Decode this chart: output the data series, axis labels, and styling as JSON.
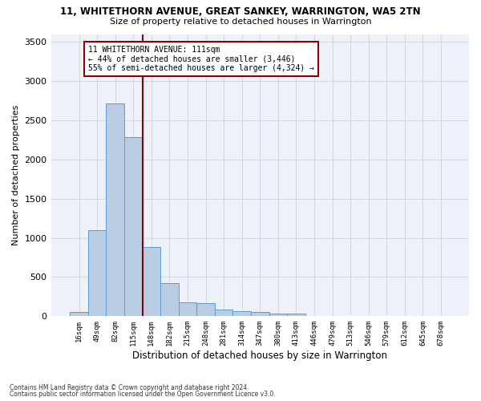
{
  "title_line1": "11, WHITETHORN AVENUE, GREAT SANKEY, WARRINGTON, WA5 2TN",
  "title_line2": "Size of property relative to detached houses in Warrington",
  "xlabel": "Distribution of detached houses by size in Warrington",
  "ylabel": "Number of detached properties",
  "footnote1": "Contains HM Land Registry data © Crown copyright and database right 2024.",
  "footnote2": "Contains public sector information licensed under the Open Government Licence v3.0.",
  "annotation_line1": "11 WHITETHORN AVENUE: 111sqm",
  "annotation_line2": "← 44% of detached houses are smaller (3,446)",
  "annotation_line3": "55% of semi-detached houses are larger (4,324) →",
  "bar_color": "#b8cce4",
  "bar_edge_color": "#5b9bd5",
  "grid_color": "#d0d8e8",
  "background_color": "#eef2f8",
  "vline_color": "#8b0000",
  "vline_x_index": 3,
  "categories": [
    "16sqm",
    "49sqm",
    "82sqm",
    "115sqm",
    "148sqm",
    "182sqm",
    "215sqm",
    "248sqm",
    "281sqm",
    "314sqm",
    "347sqm",
    "380sqm",
    "413sqm",
    "446sqm",
    "479sqm",
    "513sqm",
    "546sqm",
    "579sqm",
    "612sqm",
    "645sqm",
    "678sqm"
  ],
  "values": [
    50,
    1100,
    2720,
    2290,
    880,
    420,
    175,
    165,
    90,
    60,
    50,
    30,
    30,
    0,
    0,
    0,
    0,
    0,
    0,
    0,
    0
  ],
  "ylim": [
    0,
    3600
  ],
  "yticks": [
    0,
    500,
    1000,
    1500,
    2000,
    2500,
    3000,
    3500
  ]
}
